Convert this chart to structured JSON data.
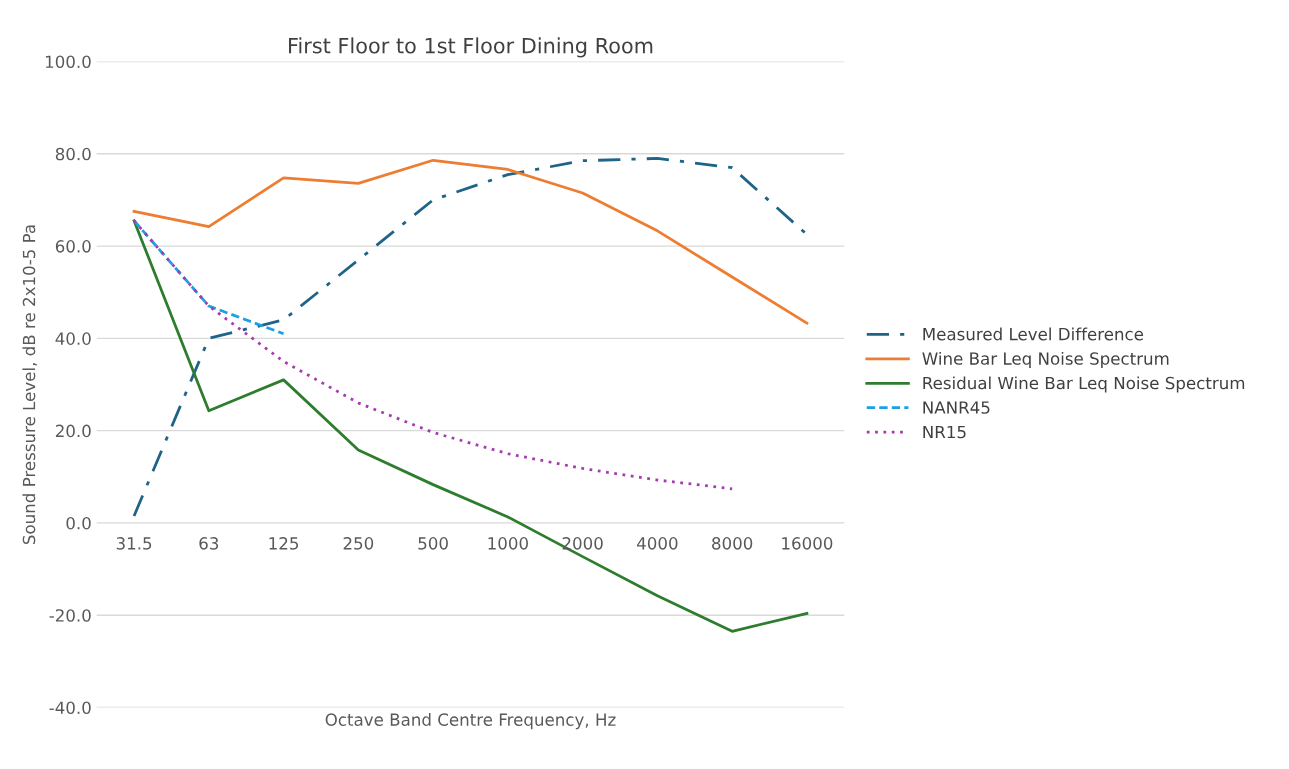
{
  "chart_data": {
    "type": "line",
    "title": "First Floor to 1st Floor Dining Room",
    "xlabel": "Octave Band Centre Frequency, Hz",
    "ylabel": "Sound Pressure Level, dB re 2x10-5 Pa",
    "categories": [
      "31.5",
      "63",
      "125",
      "250",
      "500",
      "1000",
      "2000",
      "4000",
      "8000",
      "16000"
    ],
    "series": [
      {
        "name": "Measured Level Difference",
        "color": "#1f6388",
        "line_style": "dashdot",
        "values": [
          1.5,
          40,
          44,
          57,
          70,
          75.5,
          78.5,
          79,
          77,
          62.5
        ]
      },
      {
        "name": "Wine Bar Leq Noise Spectrum",
        "color": "#ed7d31",
        "line_style": "solid",
        "values": [
          67.5,
          64.2,
          74.8,
          73.6,
          78.6,
          76.6,
          71.5,
          63.3,
          53.3,
          43.3
        ]
      },
      {
        "name": "Residual Wine Bar Leq Noise Spectrum",
        "color": "#2e7d2e",
        "line_style": "solid",
        "values": [
          65.5,
          24.3,
          31,
          15.8,
          8.3,
          1.3,
          -7.3,
          -15.8,
          -23.5,
          -19.6
        ]
      },
      {
        "name": "NANR45",
        "color": "#1ba1e2",
        "line_style": "dashed",
        "values": [
          65.5,
          47,
          41,
          null,
          null,
          null,
          null,
          null,
          null,
          null
        ]
      },
      {
        "name": "NR15",
        "color": "#a83ab0",
        "line_style": "dotted",
        "values": [
          65.5,
          47,
          35,
          26,
          19.6,
          15,
          11.8,
          9.3,
          7.4,
          null
        ]
      }
    ],
    "ylim": [
      -40,
      100
    ],
    "yticks": [
      {
        "value": -40,
        "label": "-40.0"
      },
      {
        "value": -20,
        "label": "-20.0"
      },
      {
        "value": 0,
        "label": "0.0"
      },
      {
        "value": 20,
        "label": "20.0"
      },
      {
        "value": 40,
        "label": "40.0"
      },
      {
        "value": 60,
        "label": "60.0"
      },
      {
        "value": 80,
        "label": "80.0"
      },
      {
        "value": 100,
        "label": "100.0"
      }
    ],
    "grid": "y",
    "legend": "right",
    "marker": "none"
  }
}
